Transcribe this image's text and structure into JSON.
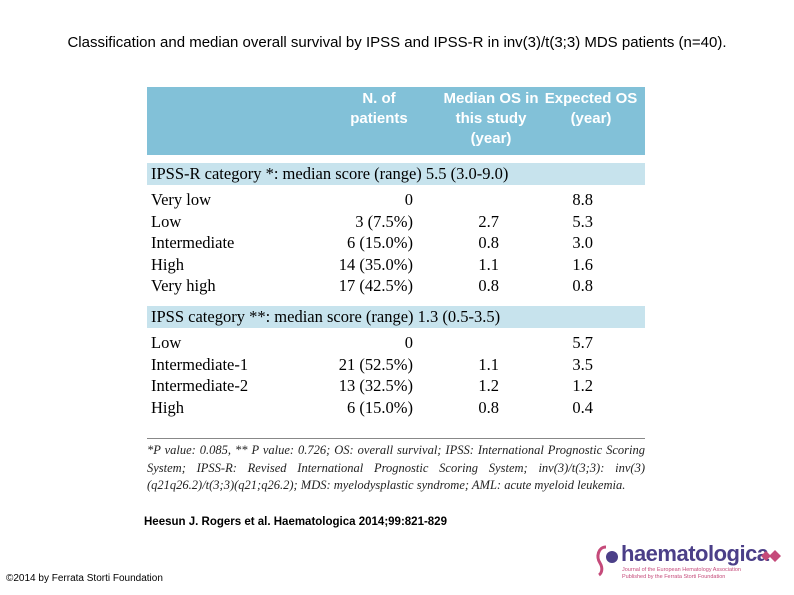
{
  "title": "Classification and median overall survival by IPSS and IPSS-R in inv(3)/t(3;3) MDS patients (n=40).",
  "table": {
    "headers": [
      "N. of\npatients",
      "Median OS in\nthis study\n(year)",
      "Expected OS\n(year)"
    ],
    "sections": [
      {
        "label": "IPSS-R category *: median score (range) 5.5 (3.0-9.0)",
        "rows": [
          {
            "cat": "Very low",
            "n": "0",
            "median": "",
            "expected": "8.8"
          },
          {
            "cat": "Low",
            "n": "3 (7.5%)",
            "median": "2.7",
            "expected": "5.3"
          },
          {
            "cat": "Intermediate",
            "n": "6 (15.0%)",
            "median": "0.8",
            "expected": "3.0"
          },
          {
            "cat": "High",
            "n": "14 (35.0%)",
            "median": "1.1",
            "expected": "1.6"
          },
          {
            "cat": "Very high",
            "n": "17 (42.5%)",
            "median": "0.8",
            "expected": "0.8"
          }
        ]
      },
      {
        "label": "IPSS category **: median score (range) 1.3 (0.5-3.5)",
        "rows": [
          {
            "cat": "Low",
            "n": "0",
            "median": "",
            "expected": "5.7"
          },
          {
            "cat": "Intermediate-1",
            "n": "21 (52.5%)",
            "median": "1.1",
            "expected": "3.5"
          },
          {
            "cat": "Intermediate-2",
            "n": "13 (32.5%)",
            "median": "1.2",
            "expected": "1.2"
          },
          {
            "cat": "High",
            "n": "6 (15.0%)",
            "median": "0.8",
            "expected": "0.4"
          }
        ]
      }
    ],
    "footnote": "*P value: 0.085, ** P value: 0.726; OS: overall survival; IPSS: International Prognostic Scoring System; IPSS-R: Revised International Prognostic Scoring System; inv(3)/t(3;3): inv(3)(q21q26.2)/t(3;3)(q21;q26.2); MDS: myelodysplastic syndrome; AML: acute myeloid leukemia."
  },
  "citation": "Heesun J. Rogers et al. Haematologica 2014;99:821-829",
  "copyright": "©2014 by Ferrata Storti Foundation",
  "logo": {
    "name": "haematologica",
    "subtitle": "Journal of the European Hematology Association\nPublished by the Ferrata Storti Foundation",
    "color": "#4b3f88",
    "accent": "#c54a7a"
  },
  "colors": {
    "header_bg": "#82c1d8",
    "band_bg": "#c7e3ed"
  }
}
